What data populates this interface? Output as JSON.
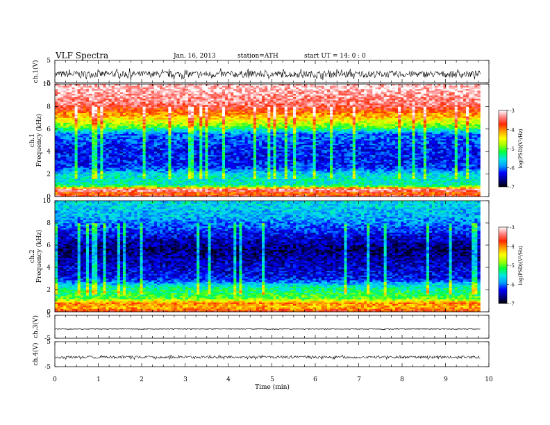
{
  "header": {
    "title": "VLF Spectra",
    "date": "Jan. 16, 2013",
    "station": "station=ATH",
    "start": "start  UT  =   14: 0  : 0"
  },
  "chart_data": {
    "type": "heatmap",
    "xlabel": "Time  (min)",
    "xlim": [
      0,
      10
    ],
    "xticks": [
      "0",
      "1",
      "2",
      "3",
      "4",
      "5",
      "6",
      "7",
      "8",
      "9",
      "10"
    ],
    "data_end_min": 9.8,
    "panels": [
      {
        "id": "ch1_waveform",
        "kind": "waveform",
        "ylabel": "ch.1(V)",
        "ylim": [
          -5,
          5
        ],
        "yticks": [
          "5",
          "-5"
        ],
        "baseline": -1.2,
        "amplitude": 1.5
      },
      {
        "id": "ch1_spectrogram",
        "kind": "spectrogram",
        "ylabel": "ch.1",
        "ylabel2": "Frequency  (kHz)",
        "ylim": [
          0,
          10
        ],
        "yticks": [
          "10",
          "8",
          "6",
          "4",
          "2",
          "0"
        ],
        "log_psd_profile": [
          {
            "f": 0.0,
            "v": -3.5
          },
          {
            "f": 0.3,
            "v": -4.0
          },
          {
            "f": 0.6,
            "v": -3.1
          },
          {
            "f": 1.0,
            "v": -5.4
          },
          {
            "f": 2.0,
            "v": -5.6
          },
          {
            "f": 2.6,
            "v": -6.2
          },
          {
            "f": 4.0,
            "v": -6.3
          },
          {
            "f": 5.6,
            "v": -6.0
          },
          {
            "f": 6.2,
            "v": -5.0
          },
          {
            "f": 7.0,
            "v": -4.3
          },
          {
            "f": 8.2,
            "v": -3.4
          },
          {
            "f": 10.0,
            "v": -3.1
          }
        ],
        "colorbar": {
          "label": "log(PSD)(V²/Hz)",
          "range": [
            -7,
            -3
          ],
          "ticks": [
            "-3",
            "-4",
            "-5",
            "-6",
            "-7"
          ]
        }
      },
      {
        "id": "ch2_spectrogram",
        "kind": "spectrogram",
        "ylabel": "ch.2",
        "ylabel2": "Frequency  (kHz)",
        "ylim": [
          0,
          10
        ],
        "yticks": [
          "10",
          "8",
          "6",
          "4",
          "2",
          "0"
        ],
        "log_psd_profile": [
          {
            "f": 0.0,
            "v": -3.6
          },
          {
            "f": 0.4,
            "v": -4.2
          },
          {
            "f": 0.8,
            "v": -4.0
          },
          {
            "f": 1.2,
            "v": -5.0
          },
          {
            "f": 2.2,
            "v": -5.4
          },
          {
            "f": 3.0,
            "v": -6.3
          },
          {
            "f": 4.5,
            "v": -6.5
          },
          {
            "f": 5.6,
            "v": -6.7
          },
          {
            "f": 6.8,
            "v": -6.4
          },
          {
            "f": 8.5,
            "v": -5.8
          },
          {
            "f": 10.0,
            "v": -5.6
          }
        ],
        "colorbar": {
          "label": "log(PSD)(V²/Hz)",
          "range": [
            -7,
            -3
          ],
          "ticks": [
            "-3",
            "-4",
            "-5",
            "-6",
            "-7"
          ]
        }
      },
      {
        "id": "ch3_waveform",
        "kind": "waveform",
        "ylabel": "ch.3(V)",
        "ylim": [
          -5,
          5
        ],
        "yticks": [
          "5",
          "-5"
        ],
        "baseline": -1.0,
        "amplitude": 0.15
      },
      {
        "id": "ch4_waveform",
        "kind": "waveform",
        "ylabel": "ch.4(V)",
        "ylim": [
          -5,
          5
        ],
        "yticks": [
          "5",
          "-5"
        ],
        "baseline": -1.2,
        "amplitude": 0.5
      }
    ]
  },
  "colors": {
    "axis": "#000000",
    "trace": "#000000",
    "colormap": [
      "#000000",
      "#00008b",
      "#0000ff",
      "#00a0ff",
      "#00e6e6",
      "#00ff40",
      "#a0ff00",
      "#ffff00",
      "#ffa000",
      "#ff2800",
      "#ff8080",
      "#ffffff"
    ]
  }
}
